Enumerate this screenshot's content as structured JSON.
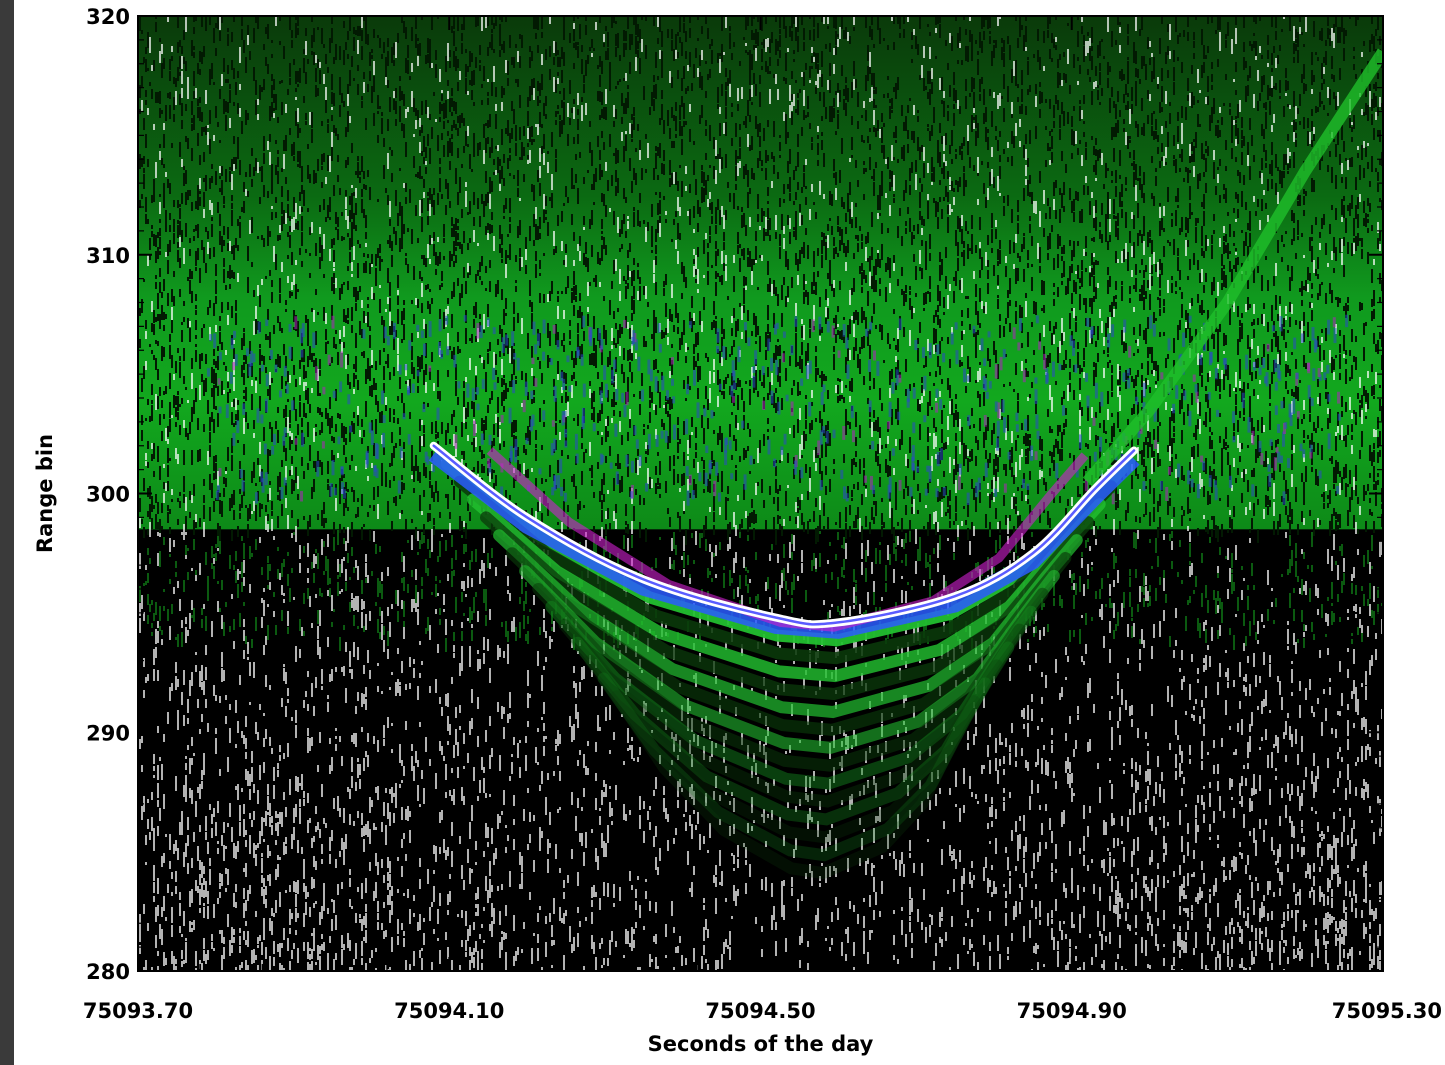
{
  "chart_data": {
    "type": "heatmap",
    "title": "",
    "xlabel": "Seconds of the day",
    "ylabel": "Range bin",
    "xlim": [
      75093.7,
      75095.3
    ],
    "ylim": [
      280,
      320
    ],
    "x_ticks": [
      "75093.70",
      "75094.10",
      "75094.50",
      "75094.90",
      "75095.30"
    ],
    "x_tick_values": [
      75093.7,
      75094.1,
      75094.5,
      75094.9,
      75095.3
    ],
    "y_ticks": [
      "280",
      "290",
      "300",
      "310",
      "320"
    ],
    "y_tick_values": [
      280,
      290,
      300,
      310,
      320
    ],
    "colormap": [
      "#000000",
      "#003300",
      "#008a00",
      "#00c41a",
      "#1f3fd0",
      "#2a5cff",
      "#d020d0",
      "#ffffff"
    ],
    "background_levels": {
      "noise_floor_above_bin": 298.5,
      "signal_band_top": 320,
      "noise_below_bin": 297.5
    },
    "trajectory_arc": {
      "series_color": "#ffffff",
      "points": [
        {
          "x": 75094.08,
          "y": 302.0
        },
        {
          "x": 75094.2,
          "y": 299.0
        },
        {
          "x": 75094.35,
          "y": 296.4
        },
        {
          "x": 75094.52,
          "y": 294.8
        },
        {
          "x": 75094.6,
          "y": 294.6
        },
        {
          "x": 75094.75,
          "y": 295.7
        },
        {
          "x": 75094.85,
          "y": 297.5
        },
        {
          "x": 75094.93,
          "y": 300.2
        },
        {
          "x": 75094.98,
          "y": 301.8
        }
      ]
    },
    "reflection_arc": {
      "points": [
        {
          "x": 75094.92,
          "y": 300.5
        },
        {
          "x": 75095.0,
          "y": 303.5
        },
        {
          "x": 75095.1,
          "y": 308.0
        },
        {
          "x": 75095.2,
          "y": 313.5
        },
        {
          "x": 75095.3,
          "y": 318.5
        }
      ]
    },
    "grid": false
  }
}
